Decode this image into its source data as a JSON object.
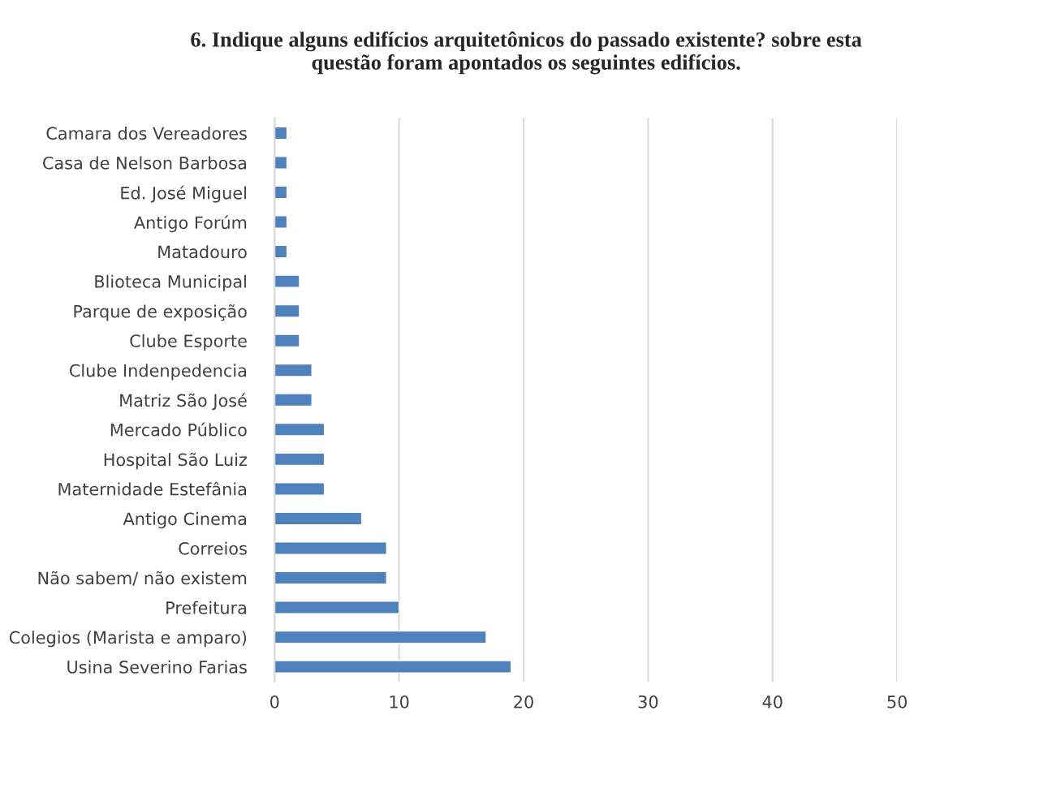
{
  "chart_data": {
    "type": "bar",
    "orientation": "horizontal",
    "title": "6. Indique alguns edifícios arquitetônicos do passado existente? sobre esta\nquestão foram apontados os seguintes edifícios.",
    "categories": [
      "Camara dos Vereadores",
      "Casa de Nelson Barbosa",
      "Ed. José Miguel",
      "Antigo Forúm",
      "Matadouro",
      "Blioteca Municipal",
      "Parque de exposição",
      "Clube Esporte",
      "Clube Indenpedencia",
      "Matriz São José",
      "Mercado Público",
      "Hospital São Luiz",
      "Maternidade Estefânia",
      "Antigo Cinema",
      "Correios",
      "Não sabem/ não existem",
      "Prefeitura",
      "Colegios (Marista e amparo)",
      "Usina Severino Farias"
    ],
    "values": [
      1,
      1,
      1,
      1,
      1,
      2,
      2,
      2,
      3,
      3,
      4,
      4,
      4,
      7,
      9,
      9,
      10,
      17,
      19
    ],
    "color": "#4f81bd",
    "xlim": [
      0,
      50
    ],
    "xticks": [
      0,
      10,
      20,
      30,
      40,
      50
    ],
    "grid": "x"
  }
}
